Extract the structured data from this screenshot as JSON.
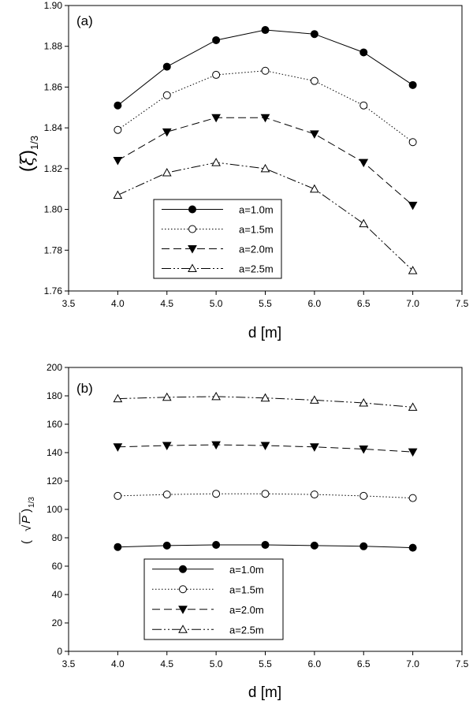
{
  "chart_data": [
    {
      "type": "line",
      "panel_label": "(a)",
      "xlabel": "d [m]",
      "ylabel": {
        "open": "(",
        "symbol": "ξ",
        "close": ")",
        "subscript": "1/3"
      },
      "xlim": [
        3.5,
        7.5
      ],
      "ylim": [
        1.76,
        1.9
      ],
      "xticks": [
        "3.5",
        "4.0",
        "4.5",
        "5.0",
        "5.5",
        "6.0",
        "6.5",
        "7.0",
        "7.5"
      ],
      "yticks": [
        "1.76",
        "1.78",
        "1.80",
        "1.82",
        "1.84",
        "1.86",
        "1.88",
        "1.90"
      ],
      "grid": false,
      "legend_position": "bottom-center",
      "x": [
        4.0,
        4.5,
        5.0,
        5.5,
        6.0,
        6.5,
        7.0
      ],
      "series": [
        {
          "name": "a=1.0m",
          "values": [
            1.851,
            1.87,
            1.883,
            1.888,
            1.886,
            1.877,
            1.861
          ]
        },
        {
          "name": "a=1.5m",
          "values": [
            1.839,
            1.856,
            1.866,
            1.868,
            1.863,
            1.851,
            1.833
          ]
        },
        {
          "name": "a=2.0m",
          "values": [
            1.824,
            1.838,
            1.845,
            1.845,
            1.837,
            1.823,
            1.802
          ]
        },
        {
          "name": "a=2.5m",
          "values": [
            1.807,
            1.818,
            1.823,
            1.82,
            1.81,
            1.793,
            1.77
          ]
        }
      ]
    },
    {
      "type": "line",
      "panel_label": "(b)",
      "xlabel": "d [m]",
      "ylabel": {
        "open": "(",
        "symbol": "P",
        "close": ")",
        "subscript": "1/3"
      },
      "xlim": [
        3.5,
        7.5
      ],
      "ylim": [
        0,
        200
      ],
      "xticks": [
        "3.5",
        "4.0",
        "4.5",
        "5.0",
        "5.5",
        "6.0",
        "6.5",
        "7.0",
        "7.5"
      ],
      "yticks": [
        "0",
        "20",
        "40",
        "60",
        "80",
        "100",
        "120",
        "140",
        "160",
        "180",
        "200"
      ],
      "grid": false,
      "legend_position": "bottom-center",
      "x": [
        4.0,
        4.5,
        5.0,
        5.5,
        6.0,
        6.5,
        7.0
      ],
      "series": [
        {
          "name": "a=1.0m",
          "values": [
            73.5,
            74.5,
            75.0,
            75.0,
            74.5,
            74.0,
            73.0
          ]
        },
        {
          "name": "a=1.5m",
          "values": [
            109.5,
            110.5,
            111.0,
            111.0,
            110.5,
            109.5,
            108.0
          ]
        },
        {
          "name": "a=2.0m",
          "values": [
            144.0,
            145.0,
            145.5,
            145.0,
            144.0,
            142.5,
            140.5
          ]
        },
        {
          "name": "a=2.5m",
          "values": [
            178.0,
            179.0,
            179.5,
            178.5,
            177.0,
            175.0,
            172.0
          ]
        }
      ]
    }
  ],
  "series_styles": [
    {
      "dash": "",
      "marker": "circle-filled"
    },
    {
      "dash": "1.5,2.5",
      "marker": "circle-open"
    },
    {
      "dash": "10,5",
      "marker": "triangle-down-filled"
    },
    {
      "dash": "12,3,2,3,2,3",
      "marker": "triangle-up-open"
    }
  ],
  "colors": {
    "line": "#000000",
    "background": "#ffffff"
  }
}
